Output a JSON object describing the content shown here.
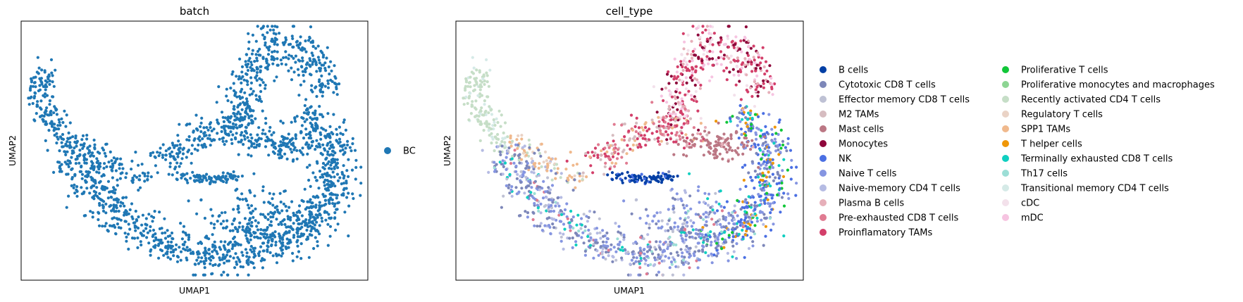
{
  "chart_data": [
    {
      "type": "scatter",
      "title": "batch",
      "xlabel": "UMAP1",
      "ylabel": "UMAP2",
      "grid": false,
      "legend_placement": "right",
      "legend": [
        {
          "name": "BC",
          "color": "#1f77b4"
        }
      ]
    },
    {
      "type": "scatter",
      "title": "cell_type",
      "xlabel": "UMAP1",
      "ylabel": "UMAP2",
      "grid": false,
      "legend_placement": "right",
      "legend": [
        {
          "name": "B cells",
          "color": "#023fa5"
        },
        {
          "name": "Cytotoxic CD8 T cells",
          "color": "#7d87b9"
        },
        {
          "name": "Effector memory CD8 T cells",
          "color": "#bec1d4"
        },
        {
          "name": "M2 TAMs",
          "color": "#d6bcc0"
        },
        {
          "name": "Mast cells",
          "color": "#bb7784"
        },
        {
          "name": "Monocytes",
          "color": "#8e063b"
        },
        {
          "name": "NK",
          "color": "#4a6fe3"
        },
        {
          "name": "Naive T cells",
          "color": "#8595e1"
        },
        {
          "name": "Naive-memory CD4 T cells",
          "color": "#b5bbe3"
        },
        {
          "name": "Plasma B cells",
          "color": "#e6afb9"
        },
        {
          "name": "Pre-exhausted CD8 T cells",
          "color": "#e07b91"
        },
        {
          "name": "Proinflamatory TAMs",
          "color": "#d33f6a"
        },
        {
          "name": "Proliferative T cells",
          "color": "#11c638"
        },
        {
          "name": "Proliferative monocytes and macrophages",
          "color": "#8dd593"
        },
        {
          "name": "Recently activated CD4 T cells",
          "color": "#c6dec7"
        },
        {
          "name": "Regulatory T cells",
          "color": "#ead3c6"
        },
        {
          "name": "SPP1 TAMs",
          "color": "#f0b98d"
        },
        {
          "name": "T helper cells",
          "color": "#ef9708"
        },
        {
          "name": "Terminally exhausted CD8 T cells",
          "color": "#0fcfc0"
        },
        {
          "name": "Th17 cells",
          "color": "#9cded6"
        },
        {
          "name": "Transitional memory CD4 T cells",
          "color": "#d5eae7"
        },
        {
          "name": "cDC",
          "color": "#f3e1eb"
        },
        {
          "name": "mDC",
          "color": "#f6c4e1"
        }
      ]
    }
  ]
}
